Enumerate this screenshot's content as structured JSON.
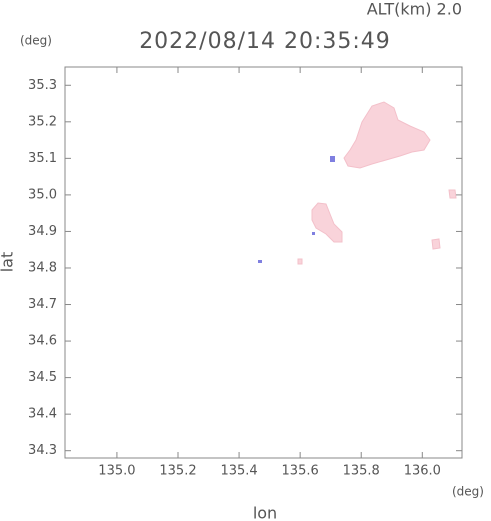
{
  "chart_data": {
    "type": "map",
    "title": "2022/08/14 20:35:49",
    "altitude_label": "ALT(km) 2.0",
    "y_unit": "(deg)",
    "x_unit": "(deg)",
    "y_label": "lat",
    "x_label": "lon",
    "xlim": [
      134.83,
      136.13
    ],
    "ylim": [
      34.28,
      35.35
    ],
    "xticks": [
      {
        "value": 135.0,
        "label": "135.0"
      },
      {
        "value": 135.2,
        "label": "135.2"
      },
      {
        "value": 135.4,
        "label": "135.4"
      },
      {
        "value": 135.6,
        "label": "135.6"
      },
      {
        "value": 135.8,
        "label": "135.8"
      },
      {
        "value": 136.0,
        "label": "136.0"
      }
    ],
    "yticks": [
      34.3,
      34.4,
      34.5,
      34.6,
      34.7,
      34.8,
      34.9,
      {
        "value": 35.0,
        "label": "35.0"
      },
      35.1,
      35.2,
      35.3
    ]
  }
}
